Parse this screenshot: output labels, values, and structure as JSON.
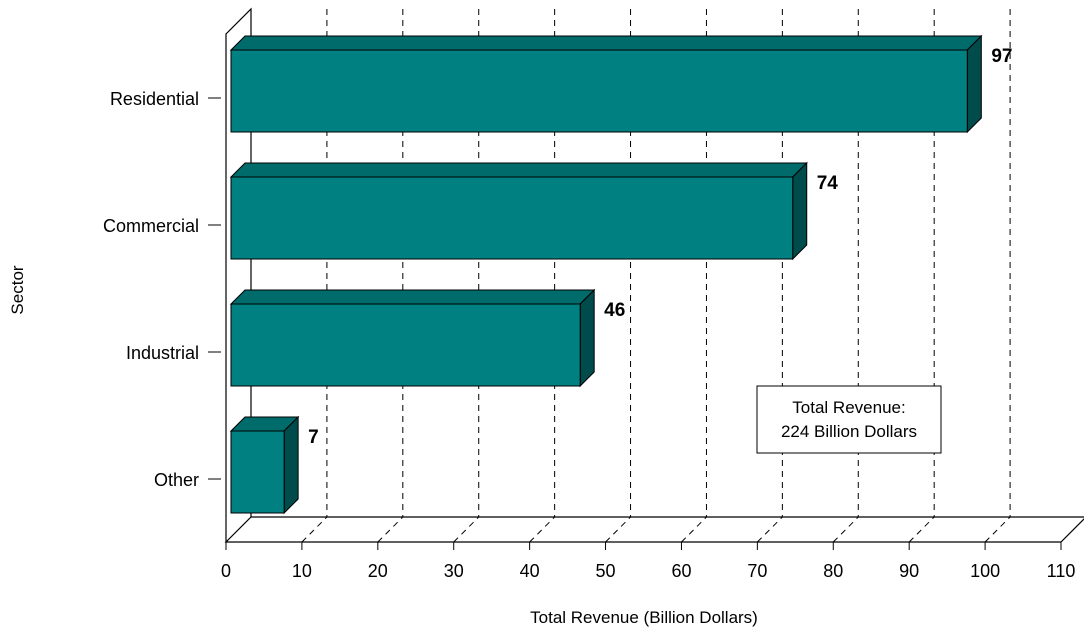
{
  "chart_data": {
    "type": "bar",
    "orientation": "horizontal",
    "categories": [
      "Residential",
      "Commercial",
      "Industrial",
      "Other"
    ],
    "values": [
      97,
      74,
      46,
      7
    ],
    "xlabel": "Total Revenue (Billion Dollars)",
    "ylabel": "Sector",
    "xlim": [
      0,
      110
    ],
    "xticks": [
      0,
      10,
      20,
      30,
      40,
      50,
      60,
      70,
      80,
      90,
      100,
      110
    ],
    "grid": "vertical-dashed",
    "annotation": {
      "line1": "Total Revenue:",
      "line2": "224 Billion Dollars"
    },
    "colors": {
      "bar_front": "#008080",
      "bar_top": "#006b6b",
      "bar_side": "#004b4b"
    }
  }
}
